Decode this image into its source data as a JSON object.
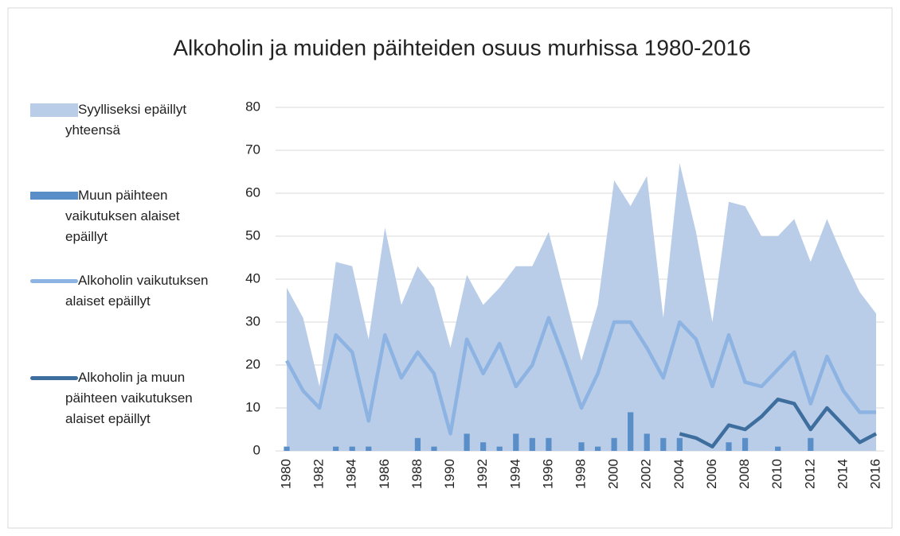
{
  "chart_data": {
    "type": "combo",
    "title": "Alkoholin ja muiden päihteiden osuus murhissa 1980-2016",
    "x": [
      1980,
      1981,
      1982,
      1983,
      1984,
      1985,
      1986,
      1987,
      1988,
      1989,
      1990,
      1991,
      1992,
      1993,
      1994,
      1995,
      1996,
      1997,
      1998,
      1999,
      2000,
      2001,
      2002,
      2003,
      2004,
      2005,
      2006,
      2007,
      2008,
      2009,
      2010,
      2011,
      2012,
      2013,
      2014,
      2015,
      2016
    ],
    "xlim": [
      1980,
      2016
    ],
    "xticks": [
      1980,
      1982,
      1984,
      1986,
      1988,
      1990,
      1992,
      1994,
      1996,
      1998,
      2000,
      2002,
      2004,
      2006,
      2008,
      2010,
      2012,
      2014,
      2016
    ],
    "ylim": [
      0,
      80
    ],
    "yticks": [
      0,
      10,
      20,
      30,
      40,
      50,
      60,
      70,
      80
    ],
    "grid": true,
    "legend": "left",
    "series": [
      {
        "name": "Syylliseksi epäillyt yhteensä",
        "type": "area",
        "color": "#b9cde8",
        "values": [
          38,
          31,
          15,
          44,
          43,
          26,
          52,
          34,
          43,
          38,
          24,
          41,
          34,
          38,
          43,
          43,
          51,
          36,
          21,
          34,
          63,
          57,
          64,
          31,
          67,
          51,
          30,
          58,
          57,
          50,
          50,
          54,
          44,
          54,
          45,
          37,
          32
        ]
      },
      {
        "name": "Muun päihteen vaikutuksen alaiset epäillyt",
        "type": "bar",
        "color": "#5a8ec8",
        "values": [
          1,
          0,
          0,
          1,
          1,
          1,
          0,
          0,
          3,
          1,
          0,
          4,
          2,
          1,
          4,
          3,
          3,
          0,
          2,
          1,
          3,
          9,
          4,
          3,
          3,
          0,
          0,
          2,
          3,
          0,
          1,
          0,
          3,
          0,
          0,
          0,
          0
        ]
      },
      {
        "name": "Alkoholin vaikutuksen alaiset epäillyt",
        "type": "line",
        "color": "#8db3e2",
        "values": [
          21,
          14,
          10,
          27,
          23,
          7,
          27,
          17,
          23,
          18,
          4,
          26,
          18,
          25,
          15,
          20,
          31,
          21,
          10,
          18,
          30,
          30,
          24,
          17,
          30,
          26,
          15,
          27,
          16,
          15,
          19,
          23,
          11,
          22,
          14,
          9,
          9
        ]
      },
      {
        "name": "Alkoholin ja muun päihteen vaikutuksen alaiset epäillyt",
        "type": "line",
        "color": "#3e6e9e",
        "values": [
          null,
          null,
          null,
          null,
          null,
          null,
          null,
          null,
          null,
          null,
          null,
          null,
          null,
          null,
          null,
          null,
          null,
          null,
          null,
          null,
          null,
          null,
          null,
          null,
          4,
          3,
          1,
          6,
          5,
          8,
          12,
          11,
          5,
          10,
          6,
          2,
          4
        ]
      }
    ]
  }
}
